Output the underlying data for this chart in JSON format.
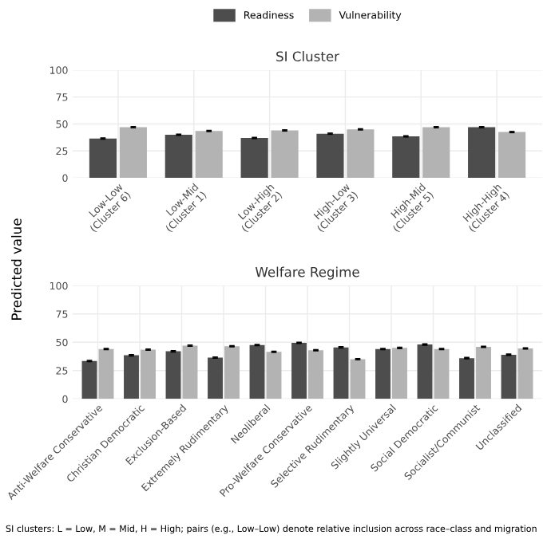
{
  "chart_data": [
    {
      "type": "bar",
      "title": "SI Cluster",
      "ylabel": "Predicted value",
      "legend": "top",
      "grid": true,
      "categories": [
        "Low-Low\n(Cluster 6)",
        "Low-Mid\n(Cluster 1)",
        "Low-High\n(Cluster 2)",
        "High-Low\n(Cluster 3)",
        "High-Mid\n(Cluster 5)",
        "High-High\n(Cluster 4)"
      ],
      "ylim": [
        0,
        100
      ],
      "yticks": [
        0,
        25,
        50,
        75,
        100
      ],
      "series": [
        {
          "name": "Readiness",
          "color": "#4d4d4d",
          "values": [
            36.5,
            40,
            37,
            41,
            38.5,
            47
          ],
          "errors": [
            0.5,
            0.5,
            0.5,
            0.5,
            0.5,
            0.5
          ]
        },
        {
          "name": "Vulnerability",
          "color": "#b3b3b3",
          "values": [
            47,
            43.5,
            44,
            45,
            47,
            42.5
          ],
          "errors": [
            0.5,
            0.5,
            0.5,
            0.5,
            0.5,
            0.5
          ]
        }
      ]
    },
    {
      "type": "bar",
      "title": "Welfare Regime",
      "grid": true,
      "categories": [
        "Anti-Welfare Conservative",
        "Christian Democratic",
        "Exclusion-Based",
        "Extremely Rudimentary",
        "Neoliberal",
        "Pro-Welfare Conservative",
        "Selective Rudimentary",
        "Slightly Universal",
        "Social Democratic",
        "Socialist/Communist",
        "Unclassified"
      ],
      "ylim": [
        0,
        100
      ],
      "yticks": [
        0,
        25,
        50,
        75,
        100
      ],
      "series": [
        {
          "color": "#4d4d4d",
          "values": [
            33.5,
            38.5,
            42,
            36.5,
            47.5,
            49.5,
            45.5,
            44,
            48,
            36,
            39
          ],
          "errors": [
            0.5,
            0.5,
            0.5,
            0.5,
            0.5,
            0.5,
            0.5,
            0.5,
            0.5,
            0.5,
            0.5
          ]
        },
        {
          "color": "#b3b3b3",
          "values": [
            44,
            43.5,
            47,
            46.5,
            41.5,
            43,
            35,
            45,
            44,
            46,
            44.5
          ],
          "errors": [
            0.5,
            0.5,
            0.5,
            0.5,
            0.5,
            0.5,
            0.5,
            0.5,
            0.5,
            0.5,
            0.5
          ]
        }
      ],
      "annotations": [
        "SI clusters: L = Low, M = Mid, H = High; pairs (e.g., Low–Low) denote relative inclusion across race–class and migration"
      ]
    }
  ]
}
